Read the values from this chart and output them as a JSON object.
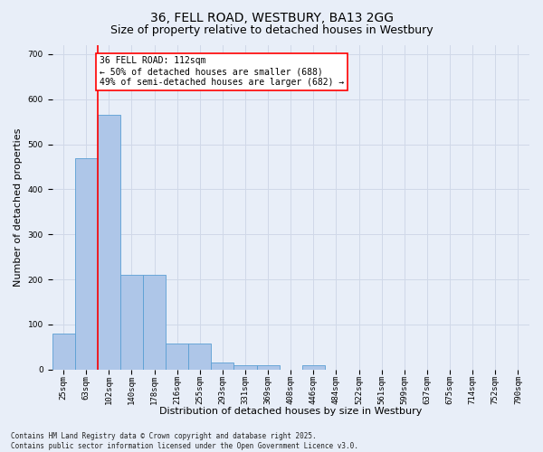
{
  "title": "36, FELL ROAD, WESTBURY, BA13 2GG",
  "subtitle": "Size of property relative to detached houses in Westbury",
  "xlabel": "Distribution of detached houses by size in Westbury",
  "ylabel": "Number of detached properties",
  "categories": [
    "25sqm",
    "63sqm",
    "102sqm",
    "140sqm",
    "178sqm",
    "216sqm",
    "255sqm",
    "293sqm",
    "331sqm",
    "369sqm",
    "408sqm",
    "446sqm",
    "484sqm",
    "522sqm",
    "561sqm",
    "599sqm",
    "637sqm",
    "675sqm",
    "714sqm",
    "752sqm",
    "790sqm"
  ],
  "values": [
    80,
    470,
    565,
    210,
    210,
    57,
    57,
    15,
    10,
    10,
    0,
    10,
    0,
    0,
    0,
    0,
    0,
    0,
    0,
    0,
    0
  ],
  "bar_color": "#aec6e8",
  "bar_edge_color": "#5a9fd4",
  "grid_color": "#d0d8e8",
  "background_color": "#e8eef8",
  "vline_x_index": 2,
  "vline_color": "red",
  "annotation_text": "36 FELL ROAD: 112sqm\n← 50% of detached houses are smaller (688)\n49% of semi-detached houses are larger (682) →",
  "annotation_box_color": "white",
  "annotation_box_edge": "red",
  "ylim": [
    0,
    720
  ],
  "yticks": [
    0,
    100,
    200,
    300,
    400,
    500,
    600,
    700
  ],
  "footer": "Contains HM Land Registry data © Crown copyright and database right 2025.\nContains public sector information licensed under the Open Government Licence v3.0.",
  "title_fontsize": 10,
  "subtitle_fontsize": 9,
  "tick_fontsize": 6.5,
  "ylabel_fontsize": 8,
  "xlabel_fontsize": 8,
  "annotation_fontsize": 7,
  "footer_fontsize": 5.5
}
